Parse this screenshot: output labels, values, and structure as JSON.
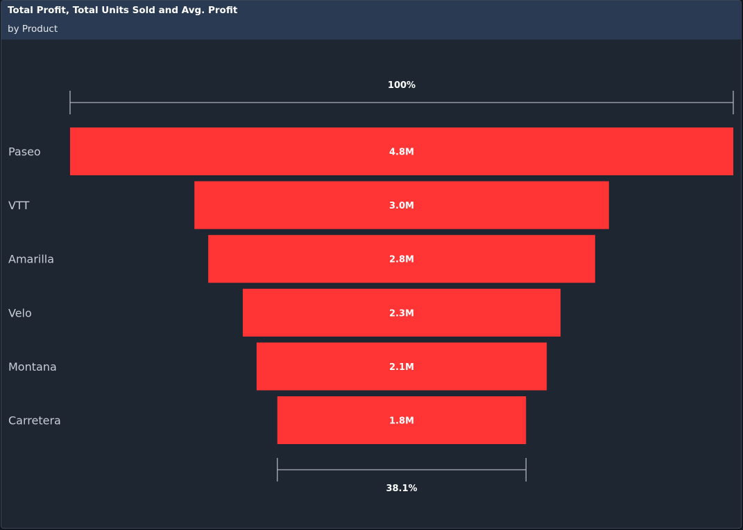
{
  "header": {
    "title": "Total Profit, Total Units Sold and Avg. Profit",
    "subtitle": "by Product"
  },
  "chart_data": {
    "type": "funnel",
    "categories": [
      "Paseo",
      "VTT",
      "Amarilla",
      "Velo",
      "Montana",
      "Carretera"
    ],
    "values": [
      4.8,
      3.0,
      2.8,
      2.3,
      2.1,
      1.8
    ],
    "value_unit": "M",
    "data_labels": [
      "4.8M",
      "3.0M",
      "2.8M",
      "2.3M",
      "2.1M",
      "1.8M"
    ],
    "top_percent_label": "100%",
    "bottom_percent_label": "38.1%",
    "colors": {
      "bar": "#ff3535",
      "bracket": "#aeb4bd"
    }
  }
}
